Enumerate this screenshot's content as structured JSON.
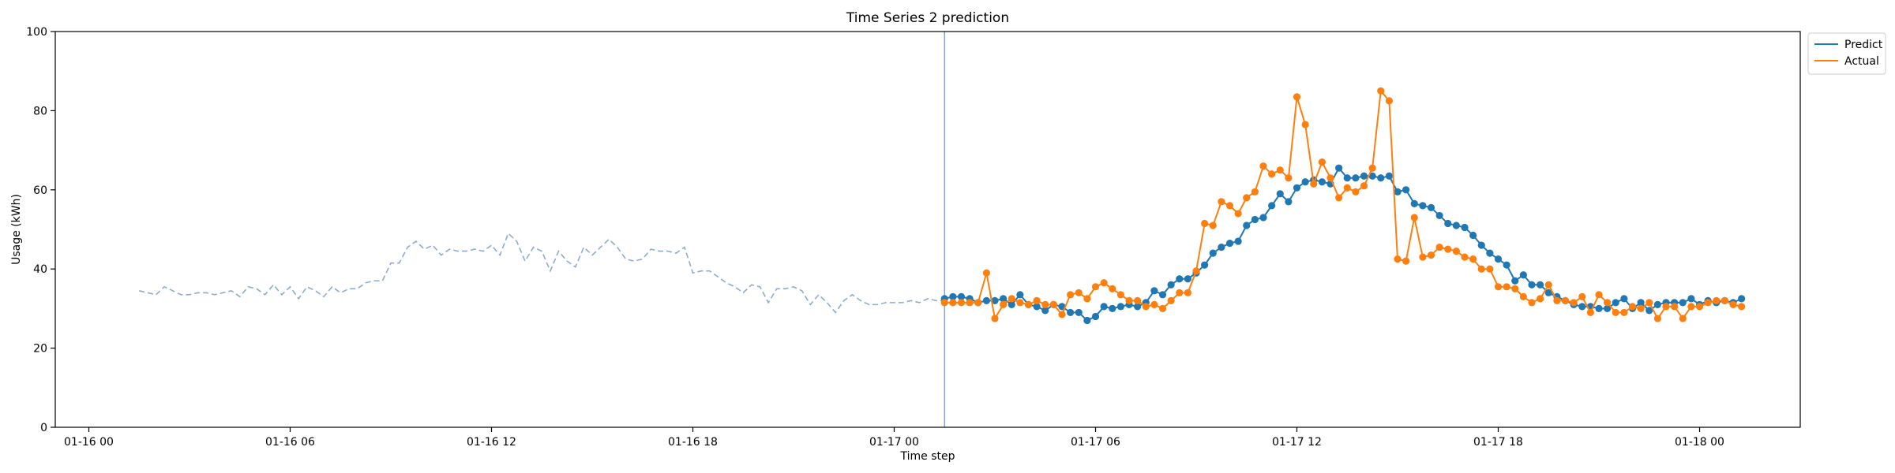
{
  "chart_data": {
    "type": "line",
    "title": "Time Series 2 prediction",
    "xlabel": "Time step",
    "ylabel": "Usage (kWh)",
    "ylim": [
      0,
      100
    ],
    "xlim": [
      "2016-01-15 23:00",
      "2016-01-18 03:00"
    ],
    "yticks": [
      0,
      20,
      40,
      60,
      80,
      100
    ],
    "xticks": [
      {
        "x": "2016-01-16 00:00",
        "label": "01-16 00"
      },
      {
        "x": "2016-01-16 06:00",
        "label": "01-16 06"
      },
      {
        "x": "2016-01-16 12:00",
        "label": "01-16 12"
      },
      {
        "x": "2016-01-16 18:00",
        "label": "01-16 18"
      },
      {
        "x": "2016-01-17 00:00",
        "label": "01-17 00"
      },
      {
        "x": "2016-01-17 06:00",
        "label": "01-17 06"
      },
      {
        "x": "2016-01-17 12:00",
        "label": "01-17 12"
      },
      {
        "x": "2016-01-17 18:00",
        "label": "01-17 18"
      },
      {
        "x": "2016-01-18 00:00",
        "label": "01-18 00"
      }
    ],
    "vline_x": "2016-01-17 01:30",
    "legend": {
      "placement": "top-right outside"
    },
    "series": [
      {
        "name": "",
        "style": "dashed",
        "color": "#8faad0",
        "x_start": "2016-01-16 01:30",
        "x_step_minutes": 15,
        "values": [
          34.5,
          34,
          33.5,
          35.5,
          34.5,
          33.5,
          33.5,
          34,
          34,
          33.5,
          34,
          34.5,
          33,
          35.5,
          35,
          33.5,
          36,
          33.5,
          35.5,
          32.5,
          35.5,
          34.5,
          33,
          35.5,
          34,
          35,
          35,
          36.5,
          37,
          37,
          41.5,
          41.5,
          45.5,
          47,
          45,
          46,
          43.5,
          45,
          44.5,
          44.5,
          45,
          44.5,
          46,
          43.5,
          49,
          47,
          42,
          45.5,
          44.5,
          39.5,
          44.5,
          42,
          40.5,
          45.5,
          43.5,
          45.5,
          47.5,
          45.5,
          42.5,
          42,
          42.5,
          45,
          44.5,
          44.5,
          44,
          45.5,
          39,
          39.5,
          39.5,
          38,
          36.5,
          35.5,
          34,
          36,
          35.5,
          31.5,
          35,
          35,
          35.5,
          34.5,
          31,
          33.5,
          31.5,
          29,
          32,
          33.5,
          32,
          31,
          31,
          31.5,
          31.5,
          31.5,
          32,
          31.5,
          32.5,
          32,
          32
        ]
      },
      {
        "name": "Predict",
        "style": "line-marker",
        "color": "#1f77b4",
        "x_start": "2016-01-17 01:30",
        "x_step_minutes": 15,
        "values": [
          32.5,
          33,
          33,
          32.5,
          31.5,
          32,
          32,
          32.5,
          31,
          33.5,
          31,
          30.5,
          29.5,
          31,
          30.5,
          29,
          29,
          27,
          28,
          30.5,
          30,
          30.5,
          31,
          30.5,
          31.5,
          34.5,
          33.5,
          36,
          37.5,
          37.5,
          39,
          41,
          44,
          45.5,
          46.5,
          47,
          51,
          52.5,
          53,
          56,
          59,
          57,
          60.5,
          62,
          62.5,
          62,
          61.5,
          65.5,
          63,
          63,
          63.5,
          63.5,
          63,
          63.5,
          59.5,
          60,
          56.5,
          56,
          55.5,
          53.5,
          51.5,
          51,
          50.5,
          48.5,
          46,
          44,
          42.5,
          41,
          37,
          38.5,
          36,
          36,
          34,
          33,
          32,
          31,
          30.5,
          30.5,
          30,
          30,
          31.5,
          32.5,
          30,
          31.5,
          29.5,
          31,
          31.5,
          31.5,
          31.5,
          32.5,
          31,
          32,
          31.5,
          32,
          31.5,
          32.5
        ]
      },
      {
        "name": "Actual",
        "style": "line-marker",
        "color": "#ff7f0e",
        "x_start": "2016-01-17 01:30",
        "x_step_minutes": 15,
        "values": [
          31.5,
          31.5,
          31.5,
          31.5,
          31.5,
          39,
          27.5,
          31,
          32.5,
          31.5,
          31,
          32,
          31,
          31,
          28.5,
          33.5,
          34,
          32.5,
          35.5,
          36.5,
          35,
          33.5,
          32,
          32,
          30.5,
          31,
          30,
          32,
          34,
          34,
          39.5,
          51.5,
          51,
          57,
          56,
          54,
          58,
          59.5,
          66,
          64,
          65,
          63,
          83.5,
          76.5,
          61.5,
          67,
          63,
          58,
          60.5,
          59.5,
          61,
          65.5,
          85,
          82.5,
          42.5,
          42,
          53,
          43,
          43.5,
          45.5,
          45,
          44.5,
          43,
          42.5,
          40,
          40,
          35.5,
          35.5,
          35,
          33,
          31.5,
          32.5,
          36,
          32,
          32,
          31.5,
          33,
          29,
          33.5,
          31.5,
          29,
          29,
          30.5,
          30,
          31.5,
          27.5,
          30.5,
          30.5,
          27.5,
          30.5,
          30.5,
          31.5,
          32,
          32,
          31,
          30.5
        ]
      }
    ]
  }
}
